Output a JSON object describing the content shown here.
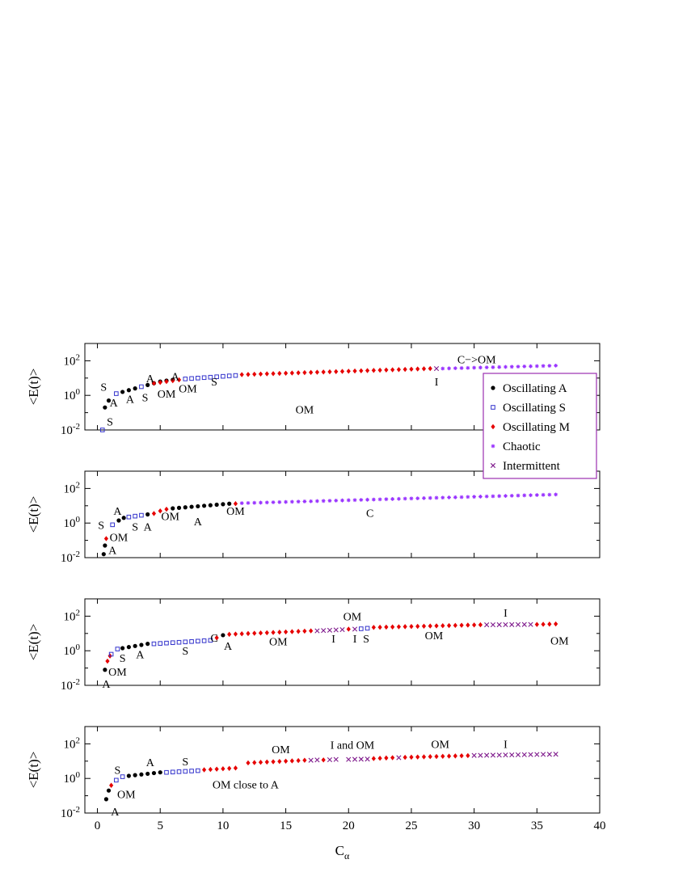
{
  "legend": {
    "entries": [
      {
        "key": "A",
        "label": "Oscillating A",
        "marker": "dot",
        "color": "#000000"
      },
      {
        "key": "S",
        "label": "Oscillating S",
        "marker": "square",
        "color": "#3333cc"
      },
      {
        "key": "M",
        "label": "Oscillating M",
        "marker": "diamond",
        "color": "#e60000"
      },
      {
        "key": "C",
        "label": "Chaotic",
        "marker": "star",
        "color": "#9933ff"
      },
      {
        "key": "I",
        "label": "Intermittent",
        "marker": "cross",
        "color": "#7f1a8c"
      }
    ],
    "placement": "top-right"
  },
  "chart_data": [
    {
      "type": "scatter",
      "ylabel_base": "<E(t)>",
      "xlim": [
        -1,
        40
      ],
      "ylim_log10": [
        -2,
        3
      ],
      "y_scale": "log",
      "y_ticks": [
        {
          "base": "10",
          "exp": "-2"
        },
        {
          "base": "10",
          "exp": "0"
        },
        {
          "base": "10",
          "exp": "2"
        }
      ],
      "segments": [
        {
          "type": "A",
          "x": [
            0.6,
            0.9
          ],
          "log_y": [
            -0.7,
            -0.3
          ]
        },
        {
          "type": "S",
          "x": [
            1.5
          ],
          "log_y": [
            0.1
          ]
        },
        {
          "type": "A",
          "x": [
            2,
            2.5,
            3
          ],
          "log_y": [
            0.2,
            0.3,
            0.4
          ]
        },
        {
          "type": "S",
          "x": [
            3.5
          ],
          "log_y": [
            0.5
          ]
        },
        {
          "type": "A",
          "x": [
            4,
            4.5,
            5,
            5.5,
            6
          ],
          "log_y": [
            0.6,
            0.7,
            0.8,
            0.85,
            0.9
          ]
        },
        {
          "type": "M",
          "x": [
            4.5,
            5,
            5.5,
            6,
            6.5
          ],
          "log_y": [
            0.7,
            0.75,
            0.8,
            0.85,
            0.9
          ]
        },
        {
          "type": "S",
          "x": [
            0.4
          ],
          "log_y": [
            -2
          ]
        },
        {
          "type": "S",
          "x_start": 7,
          "x_step": 0.5,
          "count": 9,
          "log_y_start": 0.95,
          "log_y_end": 1.15
        },
        {
          "type": "M",
          "x_start": 11.5,
          "x_step": 0.5,
          "count": 31,
          "log_y_start": 1.2,
          "log_y_end": 1.55
        },
        {
          "type": "I",
          "x": [
            27
          ],
          "log_y": [
            1.55
          ]
        },
        {
          "type": "C",
          "x_start": 27.5,
          "x_step": 0.5,
          "count": 19,
          "log_y_start": 1.55,
          "log_y_end": 1.72
        }
      ],
      "annotations": [
        {
          "text": "S",
          "x": 0.5,
          "log_y": 0.5
        },
        {
          "text": "A",
          "x": 1.3,
          "log_y": -0.4
        },
        {
          "text": "A",
          "x": 2.6,
          "log_y": -0.2
        },
        {
          "text": "S",
          "x": 3.8,
          "log_y": -0.1
        },
        {
          "text": "A",
          "x": 4.2,
          "log_y": 1.0
        },
        {
          "text": "OM",
          "x": 5.5,
          "log_y": 0.1
        },
        {
          "text": "A",
          "x": 6.2,
          "log_y": 1.1
        },
        {
          "text": "OM",
          "x": 7.2,
          "log_y": 0.4
        },
        {
          "text": "S",
          "x": 9.3,
          "log_y": 0.8
        },
        {
          "text": "S",
          "x": 1.0,
          "log_y": -1.5
        },
        {
          "text": "OM",
          "x": 16.5,
          "log_y": -0.8
        },
        {
          "text": "C−>OM",
          "x": 30.2,
          "log_y": 2.1
        },
        {
          "text": "I",
          "x": 27.0,
          "log_y": 0.8
        }
      ]
    },
    {
      "type": "scatter",
      "ylabel_base": "<E(t)>",
      "xlim": [
        -1,
        40
      ],
      "ylim_log10": [
        -2,
        3
      ],
      "y_scale": "log",
      "y_ticks": [
        {
          "base": "10",
          "exp": "-2"
        },
        {
          "base": "10",
          "exp": "0"
        },
        {
          "base": "10",
          "exp": "2"
        }
      ],
      "segments": [
        {
          "type": "A",
          "x": [
            0.5,
            0.6
          ],
          "log_y": [
            -1.8,
            -1.3
          ]
        },
        {
          "type": "M",
          "x": [
            0.7
          ],
          "log_y": [
            -0.9
          ]
        },
        {
          "type": "S",
          "x": [
            1.2
          ],
          "log_y": [
            -0.1
          ]
        },
        {
          "type": "A",
          "x": [
            1.7,
            2.1
          ],
          "log_y": [
            0.15,
            0.3
          ]
        },
        {
          "type": "S",
          "x": [
            2.5,
            3,
            3.5
          ],
          "log_y": [
            0.35,
            0.4,
            0.45
          ]
        },
        {
          "type": "A",
          "x": [
            4
          ],
          "log_y": [
            0.5
          ]
        },
        {
          "type": "M",
          "x": [
            4.5,
            5,
            5.5
          ],
          "log_y": [
            0.55,
            0.7,
            0.8
          ]
        },
        {
          "type": "A",
          "x_start": 6,
          "x_step": 0.5,
          "count": 10,
          "log_y_start": 0.85,
          "log_y_end": 1.12
        },
        {
          "type": "M",
          "x": [
            11
          ],
          "log_y": [
            1.12
          ]
        },
        {
          "type": "C",
          "x_start": 11.5,
          "x_step": 0.5,
          "count": 51,
          "log_y_start": 1.15,
          "log_y_end": 1.65
        }
      ],
      "annotations": [
        {
          "text": "S",
          "x": 0.3,
          "log_y": -0.1
        },
        {
          "text": "A",
          "x": 1.6,
          "log_y": 0.7
        },
        {
          "text": "S",
          "x": 3.0,
          "log_y": -0.2
        },
        {
          "text": "A",
          "x": 4.0,
          "log_y": -0.2
        },
        {
          "text": "OM",
          "x": 5.8,
          "log_y": 0.4
        },
        {
          "text": "A",
          "x": 8.0,
          "log_y": 0.1
        },
        {
          "text": "OM",
          "x": 11.0,
          "log_y": 0.7
        },
        {
          "text": "OM",
          "x": 1.7,
          "log_y": -0.8
        },
        {
          "text": "A",
          "x": 1.2,
          "log_y": -1.55
        },
        {
          "text": "C",
          "x": 21.7,
          "log_y": 0.6
        }
      ]
    },
    {
      "type": "scatter",
      "ylabel_base": "<E(t)>",
      "xlim": [
        -1,
        40
      ],
      "ylim_log10": [
        -2,
        3
      ],
      "y_scale": "log",
      "y_ticks": [
        {
          "base": "10",
          "exp": "-2"
        },
        {
          "base": "10",
          "exp": "0"
        },
        {
          "base": "10",
          "exp": "2"
        }
      ],
      "segments": [
        {
          "type": "A",
          "x": [
            0.6
          ],
          "log_y": [
            -1.1
          ]
        },
        {
          "type": "M",
          "x": [
            0.8,
            1.0
          ],
          "log_y": [
            -0.6,
            -0.3
          ]
        },
        {
          "type": "S",
          "x": [
            1.1,
            1.6
          ],
          "log_y": [
            -0.2,
            0.1
          ]
        },
        {
          "type": "A",
          "x_start": 2,
          "x_step": 0.5,
          "count": 5,
          "log_y_start": 0.15,
          "log_y_end": 0.4
        },
        {
          "type": "S",
          "x_start": 4.5,
          "x_step": 0.5,
          "count": 10,
          "log_y_start": 0.4,
          "log_y_end": 0.6
        },
        {
          "type": "M",
          "x": [
            9.5
          ],
          "log_y": [
            0.75
          ]
        },
        {
          "type": "A",
          "x": [
            10
          ],
          "log_y": [
            0.9
          ]
        },
        {
          "type": "M",
          "x_start": 10.5,
          "x_step": 0.5,
          "count": 14,
          "log_y_start": 0.95,
          "log_y_end": 1.15
        },
        {
          "type": "I",
          "x_start": 17.5,
          "x_step": 0.5,
          "count": 5,
          "log_y_start": 1.15,
          "log_y_end": 1.22
        },
        {
          "type": "M",
          "x": [
            20
          ],
          "log_y": [
            1.25
          ]
        },
        {
          "type": "I",
          "x": [
            20.5
          ],
          "log_y": [
            1.25
          ]
        },
        {
          "type": "S",
          "x": [
            21,
            21.5
          ],
          "log_y": [
            1.27,
            1.3
          ]
        },
        {
          "type": "M",
          "x_start": 22,
          "x_step": 0.5,
          "count": 18,
          "log_y_start": 1.35,
          "log_y_end": 1.5
        },
        {
          "type": "I",
          "x_start": 31,
          "x_step": 0.5,
          "count": 8,
          "log_y_start": 1.5,
          "log_y_end": 1.52
        },
        {
          "type": "M",
          "x_start": 35,
          "x_step": 0.5,
          "count": 4,
          "log_y_start": 1.52,
          "log_y_end": 1.55
        }
      ],
      "annotations": [
        {
          "text": "OM",
          "x": 1.6,
          "log_y": -1.2
        },
        {
          "text": "A",
          "x": 0.7,
          "log_y": -1.9
        },
        {
          "text": "S",
          "x": 2.0,
          "log_y": -0.4
        },
        {
          "text": "A",
          "x": 3.4,
          "log_y": -0.2
        },
        {
          "text": "S",
          "x": 7.0,
          "log_y": 0.0
        },
        {
          "text": "C",
          "x": 9.3,
          "log_y": 0.75
        },
        {
          "text": "A",
          "x": 10.4,
          "log_y": 0.3
        },
        {
          "text": "OM",
          "x": 14.4,
          "log_y": 0.55
        },
        {
          "text": "I",
          "x": 18.8,
          "log_y": 0.7
        },
        {
          "text": "OM",
          "x": 20.3,
          "log_y": 2.0
        },
        {
          "text": "I",
          "x": 20.5,
          "log_y": 0.7
        },
        {
          "text": "S",
          "x": 21.4,
          "log_y": 0.7
        },
        {
          "text": "OM",
          "x": 26.8,
          "log_y": 0.9
        },
        {
          "text": "I",
          "x": 32.5,
          "log_y": 2.2
        },
        {
          "text": "OM",
          "x": 36.8,
          "log_y": 0.6
        }
      ]
    },
    {
      "type": "scatter",
      "ylabel_base": "<E(t)>",
      "xlabel_base": "C",
      "xlabel_sub": "α",
      "xlim": [
        -1,
        40
      ],
      "ylim_log10": [
        -2,
        3
      ],
      "y_scale": "log",
      "x_ticks": [
        0,
        5,
        10,
        15,
        20,
        25,
        30,
        35,
        40
      ],
      "y_ticks": [
        {
          "base": "10",
          "exp": "-2"
        },
        {
          "base": "10",
          "exp": "0"
        },
        {
          "base": "10",
          "exp": "2"
        }
      ],
      "segments": [
        {
          "type": "A",
          "x": [
            0.7
          ],
          "log_y": [
            -1.2
          ]
        },
        {
          "type": "A",
          "x": [
            0.9
          ],
          "log_y": [
            -0.7
          ]
        },
        {
          "type": "M",
          "x": [
            1.1
          ],
          "log_y": [
            -0.4
          ]
        },
        {
          "type": "S",
          "x": [
            1.5,
            2
          ],
          "log_y": [
            -0.1,
            0.1
          ]
        },
        {
          "type": "A",
          "x_start": 2.5,
          "x_step": 0.5,
          "count": 6,
          "log_y_start": 0.15,
          "log_y_end": 0.35
        },
        {
          "type": "S",
          "x_start": 5.5,
          "x_step": 0.5,
          "count": 6,
          "log_y_start": 0.35,
          "log_y_end": 0.45
        },
        {
          "type": "M",
          "x_start": 8.5,
          "x_step": 0.5,
          "count": 6,
          "log_y_start": 0.5,
          "log_y_end": 0.6
        },
        {
          "type": "M",
          "x_start": 12,
          "x_step": 0.5,
          "count": 10,
          "log_y_start": 0.9,
          "log_y_end": 1.05
        },
        {
          "type": "I",
          "x": [
            17,
            17.5,
            18.5,
            19
          ],
          "log_y": [
            1.05,
            1.07,
            1.08,
            1.1
          ]
        },
        {
          "type": "M",
          "x": [
            18
          ],
          "log_y": [
            1.07
          ]
        },
        {
          "type": "I",
          "x_start": 20,
          "x_step": 0.5,
          "count": 4,
          "log_y_start": 1.1,
          "log_y_end": 1.12
        },
        {
          "type": "M",
          "x_start": 22,
          "x_step": 0.5,
          "count": 4,
          "log_y_start": 1.15,
          "log_y_end": 1.2
        },
        {
          "type": "I",
          "x": [
            24
          ],
          "log_y": [
            1.2
          ]
        },
        {
          "type": "M",
          "x_start": 24.5,
          "x_step": 0.5,
          "count": 11,
          "log_y_start": 1.22,
          "log_y_end": 1.32
        },
        {
          "type": "I",
          "x_start": 30,
          "x_step": 0.5,
          "count": 14,
          "log_y_start": 1.33,
          "log_y_end": 1.4
        }
      ],
      "annotations": [
        {
          "text": "A",
          "x": 1.4,
          "log_y": -1.9
        },
        {
          "text": "OM",
          "x": 2.3,
          "log_y": -0.9
        },
        {
          "text": "S",
          "x": 1.6,
          "log_y": 0.5
        },
        {
          "text": "A",
          "x": 4.2,
          "log_y": 0.95
        },
        {
          "text": "S",
          "x": 7.0,
          "log_y": 1.0
        },
        {
          "text": "OM close to A",
          "x": 11.8,
          "log_y": -0.35
        },
        {
          "text": "OM",
          "x": 14.6,
          "log_y": 1.7
        },
        {
          "text": "I and OM",
          "x": 20.3,
          "log_y": 1.95
        },
        {
          "text": "OM",
          "x": 27.3,
          "log_y": 2.0
        },
        {
          "text": "I",
          "x": 32.5,
          "log_y": 2.0
        }
      ]
    }
  ]
}
